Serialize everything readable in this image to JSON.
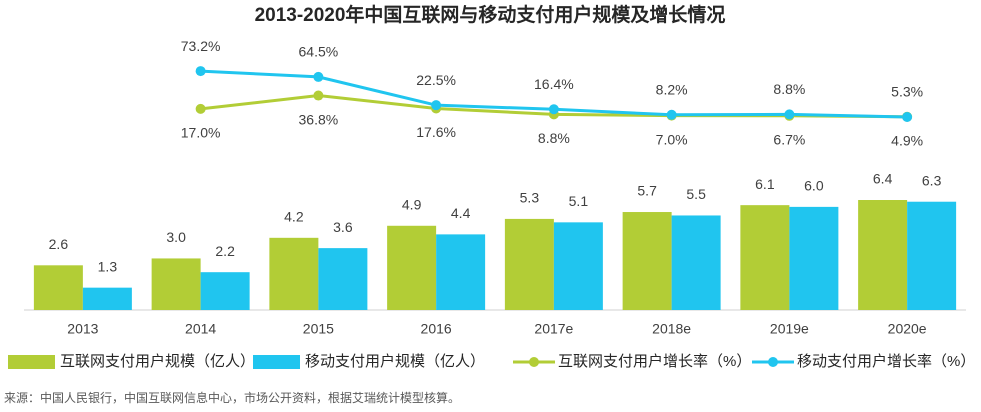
{
  "chart_data": {
    "type": "bar",
    "title": "2013-2020年中国互联网与移动支付用户规模及增长情况",
    "categories": [
      "2013",
      "2014",
      "2015",
      "2016",
      "2017e",
      "2018e",
      "2019e",
      "2020e"
    ],
    "ylim": [
      0,
      8
    ],
    "y2lim": [
      0,
      80
    ],
    "series": [
      {
        "name": "互联网支付用户规模（亿人）",
        "color": "#b2cd36",
        "values": [
          2.6,
          3.0,
          4.2,
          4.9,
          5.3,
          5.7,
          6.1,
          6.4
        ],
        "value_labels": [
          "2.6",
          "3.0",
          "4.2",
          "4.9",
          "5.3",
          "5.7",
          "6.1",
          "6.4"
        ]
      },
      {
        "name": "移动支付用户规模（亿人）",
        "color": "#20c5ef",
        "values": [
          1.3,
          2.2,
          3.6,
          4.4,
          5.1,
          5.5,
          6.0,
          6.3
        ],
        "value_labels": [
          "1.3",
          "2.2",
          "3.6",
          "4.4",
          "5.1",
          "5.5",
          "6.0",
          "6.3"
        ]
      },
      {
        "name": "互联网支付用户增长率（%）",
        "color": "#b2cd36",
        "type": "line",
        "axis": "y2",
        "values": [
          null,
          17.0,
          36.8,
          17.6,
          8.8,
          7.0,
          6.7,
          5.3
        ],
        "value_labels": [
          null,
          "17.0%",
          "36.8%",
          "17.6%",
          "8.8%",
          "7.0%",
          "6.7%",
          "5.3%"
        ]
      },
      {
        "name": "移动支付用户增长率（%）",
        "color": "#20c5ef",
        "type": "line",
        "axis": "y2",
        "values": [
          null,
          73.2,
          64.5,
          22.5,
          16.4,
          8.2,
          8.8,
          4.9
        ],
        "value_labels": [
          null,
          "73.2%",
          "64.5%",
          "22.5%",
          "16.4%",
          "8.2%",
          "8.8%",
          "4.9%"
        ]
      }
    ],
    "source": "来源：中国人民银行，中国互联网信息中心，市场公开资料，根据艾瑞统计模型核算。"
  }
}
